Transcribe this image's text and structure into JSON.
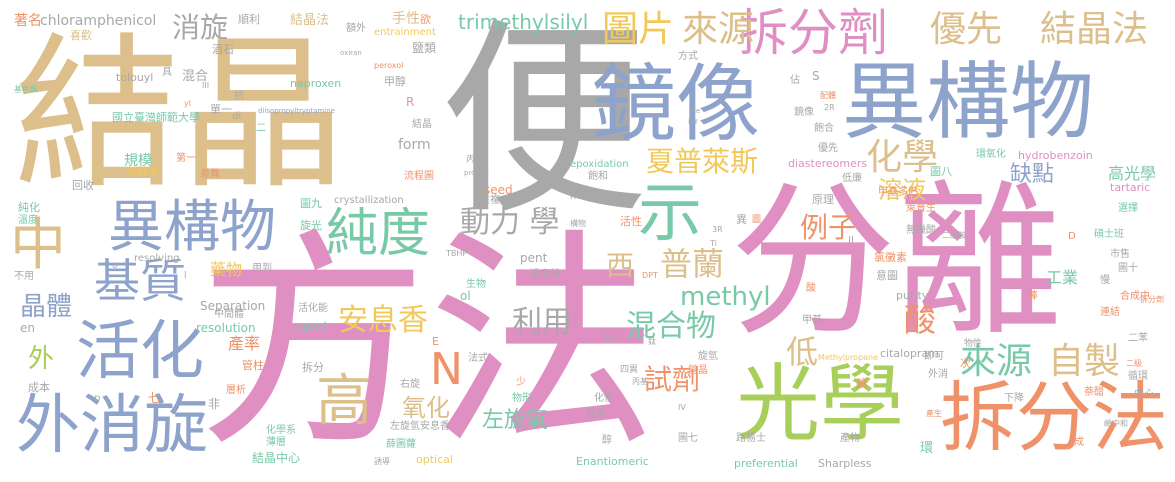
{
  "palette": {
    "tan": "#dcbf8a",
    "gray": "#a8a8a8",
    "blue": "#8ea3cc",
    "pink": "#e08fc2",
    "green": "#a8cf5a",
    "teal": "#78c9a8",
    "orange": "#ef926a",
    "yellow": "#f1c95a"
  },
  "words": [
    {
      "text": "便",
      "color": "gray"
    },
    {
      "text": "結晶",
      "color": "tan"
    },
    {
      "text": "方法",
      "color": "pink"
    },
    {
      "text": "分離",
      "color": "pink"
    },
    {
      "text": "鏡像",
      "color": "blue"
    },
    {
      "text": "異構物",
      "color": "blue"
    },
    {
      "text": "光學",
      "color": "green"
    },
    {
      "text": "拆分法",
      "color": "orange"
    },
    {
      "text": "異構物",
      "color": "blue"
    },
    {
      "text": "活化",
      "color": "blue"
    },
    {
      "text": "外消旋",
      "color": "blue"
    },
    {
      "text": "純度",
      "color": "teal"
    },
    {
      "text": "基質",
      "color": "blue"
    },
    {
      "text": "示",
      "color": "teal"
    },
    {
      "text": "拆分劑",
      "color": "pink"
    },
    {
      "text": "來源",
      "color": "tan"
    },
    {
      "text": "圖片",
      "color": "yellow"
    },
    {
      "text": "優先",
      "color": "tan"
    },
    {
      "text": "結晶法",
      "color": "tan"
    },
    {
      "text": "結晶法",
      "color": "tan"
    },
    {
      "text": "中",
      "color": "tan"
    },
    {
      "text": "高",
      "color": "tan"
    },
    {
      "text": "N",
      "color": "orange"
    },
    {
      "text": "來源",
      "color": "teal"
    },
    {
      "text": "自製",
      "color": "tan"
    },
    {
      "text": "安息香",
      "color": "yellow"
    },
    {
      "text": "混合物",
      "color": "teal"
    },
    {
      "text": "化學",
      "color": "tan"
    },
    {
      "text": "夏普萊斯",
      "color": "yellow"
    },
    {
      "text": "動力 學",
      "color": "gray"
    },
    {
      "text": "methyl",
      "color": "teal"
    },
    {
      "text": "普蘭",
      "color": "tan"
    },
    {
      "text": "西",
      "color": "tan"
    },
    {
      "text": "例子",
      "color": "orange"
    },
    {
      "text": "利用",
      "color": "gray"
    },
    {
      "text": "試劑",
      "color": "orange"
    },
    {
      "text": "酸",
      "color": "orange"
    },
    {
      "text": "低",
      "color": "tan"
    },
    {
      "text": "晶體",
      "color": "blue"
    },
    {
      "text": "消旋",
      "color": "gray"
    },
    {
      "text": "trimethylsilyl",
      "color": "teal"
    },
    {
      "text": "外",
      "color": "green"
    },
    {
      "text": "溶液",
      "color": "yellow"
    },
    {
      "text": "缺點",
      "color": "blue"
    },
    {
      "text": "氧化",
      "color": "tan"
    },
    {
      "text": "左旋氧",
      "color": "teal"
    },
    {
      "text": "工業",
      "color": "teal"
    },
    {
      "text": "產率",
      "color": "orange"
    },
    {
      "text": "藥物",
      "color": "yellow"
    },
    {
      "text": "高光學",
      "color": "teal"
    },
    {
      "text": "著名",
      "color": "orange"
    },
    {
      "text": "chloramphenicol",
      "color": "gray"
    },
    {
      "text": "喜歡",
      "color": "tan"
    },
    {
      "text": "基色族",
      "color": "teal"
    },
    {
      "text": "國立臺灣師範大學",
      "color": "teal"
    },
    {
      "text": "tolouyl",
      "color": "gray"
    },
    {
      "text": "naproxen",
      "color": "teal"
    },
    {
      "text": "規模",
      "color": "teal"
    },
    {
      "text": "管柱法",
      "color": "yellow"
    },
    {
      "text": "回收",
      "color": "gray"
    },
    {
      "text": "純化",
      "color": "teal"
    },
    {
      "text": "溫度",
      "color": "teal"
    },
    {
      "text": "成本",
      "color": "gray"
    },
    {
      "text": "結晶中心",
      "color": "teal"
    },
    {
      "text": "crystallization",
      "color": "gray"
    },
    {
      "text": "epoxidation",
      "color": "teal"
    },
    {
      "text": "methyldopa",
      "color": "gray"
    },
    {
      "text": "hydrobenzoin",
      "color": "pink"
    },
    {
      "text": "diastereomers",
      "color": "pink"
    },
    {
      "text": "resolution",
      "color": "teal"
    },
    {
      "text": "Separation",
      "color": "gray"
    },
    {
      "text": "resolving",
      "color": "gray"
    },
    {
      "text": "form",
      "color": "gray"
    },
    {
      "text": "seed",
      "color": "orange"
    },
    {
      "text": "pent",
      "color": "gray"
    },
    {
      "text": "purity",
      "color": "gray"
    },
    {
      "text": "citalopram",
      "color": "gray"
    },
    {
      "text": "tartaric",
      "color": "pink"
    },
    {
      "text": "Sharpless",
      "color": "gray"
    },
    {
      "text": "preferential",
      "color": "teal"
    },
    {
      "text": "Enantiomeric",
      "color": "teal"
    },
    {
      "text": "optical",
      "color": "yellow"
    },
    {
      "text": "entrainment",
      "color": "yellow"
    },
    {
      "text": "oxiran",
      "color": "gray"
    },
    {
      "text": "peroxol",
      "color": "orange"
    },
    {
      "text": "diisopropyltryptamine",
      "color": "blue"
    },
    {
      "text": "agent",
      "color": "teal"
    },
    {
      "text": "Methylpropane",
      "color": "yellow"
    },
    {
      "text": "手性",
      "color": "tan"
    },
    {
      "text": "鹽類",
      "color": "gray"
    },
    {
      "text": "甲醇",
      "color": "gray"
    },
    {
      "text": "順利",
      "color": "gray"
    },
    {
      "text": "欲",
      "color": "orange"
    },
    {
      "text": "額外",
      "color": "gray"
    },
    {
      "text": "方式",
      "color": "gray"
    },
    {
      "text": "酒石",
      "color": "gray"
    },
    {
      "text": "混合",
      "color": "gray"
    },
    {
      "text": "抗",
      "color": "gray"
    },
    {
      "text": "單一",
      "color": "gray"
    },
    {
      "text": "第一",
      "color": "orange"
    },
    {
      "text": "差異",
      "color": "orange"
    },
    {
      "text": "旋光",
      "color": "teal"
    },
    {
      "text": "圖九",
      "color": "teal"
    },
    {
      "text": "流程圖",
      "color": "orange"
    },
    {
      "text": "丙醇",
      "color": "gray"
    },
    {
      "text": "飽和",
      "color": "gray"
    },
    {
      "text": "重複",
      "color": "gray"
    },
    {
      "text": "生物",
      "color": "teal"
    },
    {
      "text": "活性",
      "color": "orange"
    },
    {
      "text": "用到",
      "color": "gray"
    },
    {
      "text": "過度態",
      "color": "gray"
    },
    {
      "text": "中間體",
      "color": "gray"
    },
    {
      "text": "活化能",
      "color": "gray"
    },
    {
      "text": "管柱",
      "color": "orange"
    },
    {
      "text": "層析",
      "color": "orange"
    },
    {
      "text": "化學系",
      "color": "teal"
    },
    {
      "text": "薄層",
      "color": "teal"
    },
    {
      "text": "右旋",
      "color": "gray"
    },
    {
      "text": "少",
      "color": "orange"
    },
    {
      "text": "物形",
      "color": "teal"
    },
    {
      "text": "性質",
      "color": "gray"
    },
    {
      "text": "化性",
      "color": "gray"
    },
    {
      "text": "左旋氫安息香",
      "color": "gray"
    },
    {
      "text": "薛圖蘿",
      "color": "teal"
    },
    {
      "text": "原理",
      "color": "gray"
    },
    {
      "text": "無機酸",
      "color": "gray"
    },
    {
      "text": "氯黴素",
      "color": "orange"
    },
    {
      "text": "意圖",
      "color": "gray"
    },
    {
      "text": "甲基多巴",
      "color": "orange"
    },
    {
      "text": "萊普生",
      "color": "orange"
    },
    {
      "text": "圖八",
      "color": "teal"
    },
    {
      "text": "環氧化",
      "color": "teal"
    },
    {
      "text": "碩士班",
      "color": "teal"
    },
    {
      "text": "市售",
      "color": "gray"
    },
    {
      "text": "選擇",
      "color": "teal"
    },
    {
      "text": "圖十",
      "color": "gray"
    },
    {
      "text": "合成中",
      "color": "orange"
    },
    {
      "text": "連結",
      "color": "orange"
    },
    {
      "text": "二苯",
      "color": "gray"
    },
    {
      "text": "循環",
      "color": "gray"
    },
    {
      "text": "中心",
      "color": "gray"
    },
    {
      "text": "甲基",
      "color": "gray"
    },
    {
      "text": "當晶",
      "color": "orange"
    },
    {
      "text": "物性",
      "color": "gray"
    },
    {
      "text": "即可",
      "color": "gray"
    },
    {
      "text": "外消",
      "color": "gray"
    },
    {
      "text": "鹼",
      "color": "orange"
    },
    {
      "text": "產物",
      "color": "gray"
    },
    {
      "text": "圖七",
      "color": "gray"
    },
    {
      "text": "環",
      "color": "teal"
    },
    {
      "text": "路易士",
      "color": "gray"
    },
    {
      "text": "不用",
      "color": "gray"
    },
    {
      "text": "en",
      "color": "gray"
    },
    {
      "text": "ol",
      "color": "teal"
    },
    {
      "text": "R",
      "color": "pink"
    },
    {
      "text": "S",
      "color": "gray"
    },
    {
      "text": "di",
      "color": "gray"
    },
    {
      "text": "E",
      "color": "orange"
    },
    {
      "text": "D",
      "color": "orange"
    },
    {
      "text": "II",
      "color": "gray"
    },
    {
      "text": "III",
      "color": "gray"
    },
    {
      "text": "IV",
      "color": "gray"
    },
    {
      "text": "TBHP",
      "color": "gray"
    },
    {
      "text": "iPr",
      "color": "gray"
    },
    {
      "text": "DPT",
      "color": "orange"
    },
    {
      "text": "Ti",
      "color": "gray"
    },
    {
      "text": "propen",
      "color": "gray"
    },
    {
      "text": "Me",
      "color": "gray"
    },
    {
      "text": "3R",
      "color": "gray"
    },
    {
      "text": "2R",
      "color": "gray"
    },
    {
      "text": "異",
      "color": "gray"
    },
    {
      "text": "酸",
      "color": "orange"
    },
    {
      "text": "叔丁",
      "color": "gray"
    },
    {
      "text": "鈦",
      "color": "gray"
    },
    {
      "text": "四異",
      "color": "gray"
    },
    {
      "text": "丙基",
      "color": "gray"
    },
    {
      "text": "醇",
      "color": "gray"
    },
    {
      "text": "旋氫",
      "color": "gray"
    },
    {
      "text": "棒",
      "color": "orange"
    },
    {
      "text": "佔",
      "color": "gray"
    },
    {
      "text": "鏡像",
      "color": "gray"
    },
    {
      "text": "飽合",
      "color": "gray"
    },
    {
      "text": "下降",
      "color": "gray"
    },
    {
      "text": "成",
      "color": "orange"
    },
    {
      "text": "次",
      "color": "orange"
    },
    {
      "text": "非",
      "color": "gray"
    },
    {
      "text": "七",
      "color": "orange"
    },
    {
      "text": "p",
      "color": "gray"
    },
    {
      "text": "法式",
      "color": "gray"
    },
    {
      "text": "二",
      "color": "teal"
    },
    {
      "text": "具",
      "color": "gray"
    },
    {
      "text": "慢",
      "color": "gray"
    },
    {
      "text": "優先",
      "color": "gray"
    },
    {
      "text": "低廉",
      "color": "gray"
    },
    {
      "text": "結晶",
      "color": "gray"
    },
    {
      "text": "萘醋",
      "color": "orange"
    },
    {
      "text": "拆分",
      "color": "gray"
    },
    {
      "text": "拆分劑",
      "color": "orange"
    },
    {
      "text": "二級",
      "color": "orange"
    },
    {
      "text": "構物",
      "color": "gray"
    },
    {
      "text": "配體",
      "color": "orange"
    },
    {
      "text": "二級胺",
      "color": "gray"
    },
    {
      "text": "誘導",
      "color": "gray"
    },
    {
      "text": "鹼中和",
      "color": "gray"
    },
    {
      "text": "o",
      "color": "gray"
    },
    {
      "text": "產生",
      "color": "orange"
    },
    {
      "text": "l",
      "color": "gray"
    },
    {
      "text": "yl",
      "color": "orange"
    },
    {
      "text": "圖",
      "color": "orange"
    }
  ]
}
